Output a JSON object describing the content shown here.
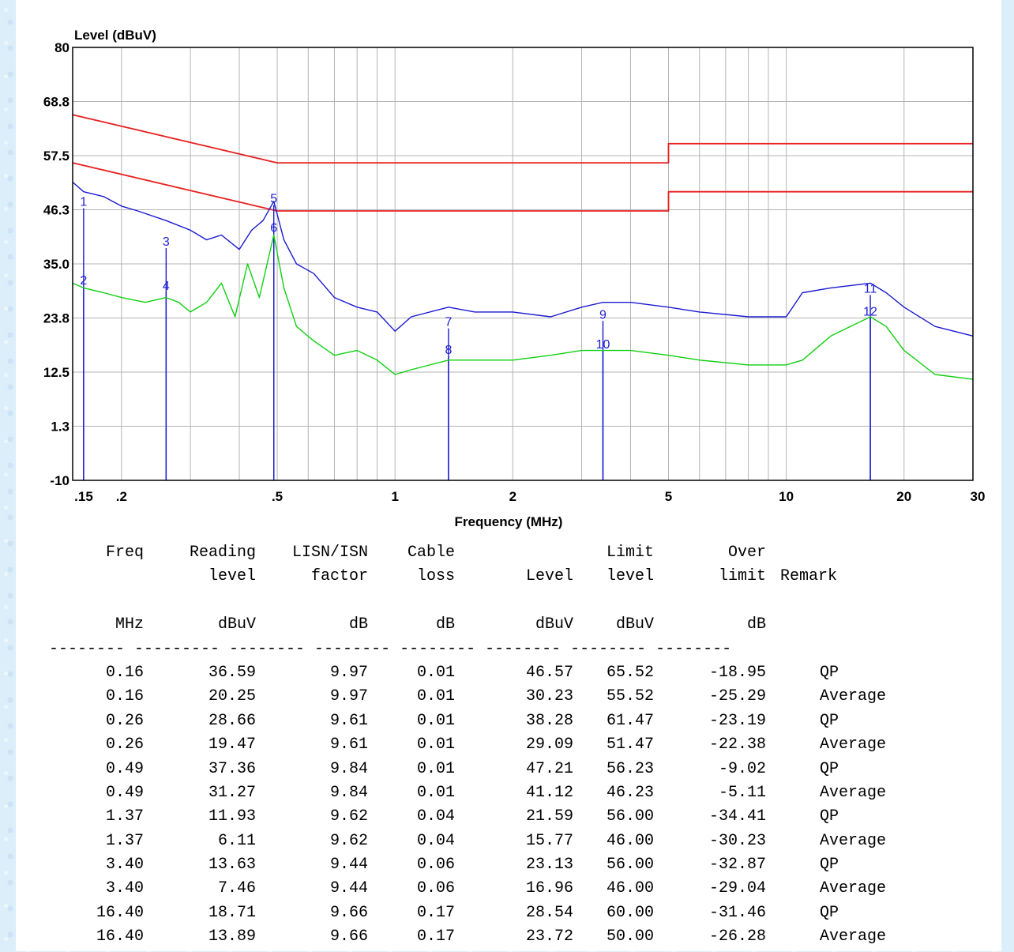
{
  "chart_data": {
    "type": "line",
    "xscale": "log",
    "ylabel": "Level (dBuV)",
    "xlabel": "Frequency (MHz)",
    "ylim": [
      -10,
      80
    ],
    "xlim": [
      0.15,
      30
    ],
    "y_ticks": [
      "80",
      "68.8",
      "57.5",
      "46.3",
      "35.0",
      "23.8",
      "12.5",
      "1.3",
      "-10"
    ],
    "y_tick_values": [
      80,
      68.75,
      57.5,
      46.25,
      35.0,
      23.75,
      12.5,
      1.25,
      -10
    ],
    "x_ticks": [
      {
        "label": ".15",
        "value": 0.15
      },
      {
        "label": ".2",
        "value": 0.2
      },
      {
        "label": ".5",
        "value": 0.5
      },
      {
        "label": "1",
        "value": 1
      },
      {
        "label": "2",
        "value": 2
      },
      {
        "label": "5",
        "value": 5
      },
      {
        "label": "10",
        "value": 10
      },
      {
        "label": "20",
        "value": 20
      },
      {
        "label": "30",
        "value": 30
      }
    ],
    "grid": true,
    "series": [
      {
        "color": "#e82020",
        "x": [
          0.15,
          0.5,
          0.5,
          5,
          5,
          30
        ],
        "y": [
          66,
          56,
          56,
          56,
          60,
          60
        ]
      },
      {
        "color": "#e82020",
        "x": [
          0.15,
          0.5,
          0.5,
          5,
          5,
          30
        ],
        "y": [
          56,
          46,
          46,
          46,
          50,
          50
        ]
      },
      {
        "color": "#1a1ad0",
        "x": [
          0.15,
          0.16,
          0.18,
          0.2,
          0.22,
          0.26,
          0.3,
          0.33,
          0.36,
          0.4,
          0.43,
          0.46,
          0.49,
          0.52,
          0.56,
          0.62,
          0.7,
          0.8,
          0.9,
          1.0,
          1.1,
          1.37,
          1.6,
          2.0,
          2.5,
          3.0,
          3.4,
          4.0,
          5.0,
          6.0,
          8.0,
          10.0,
          11.0,
          13.0,
          16.4,
          18.0,
          20.0,
          24.0,
          30.0
        ],
        "y": [
          52,
          50,
          49,
          47,
          46,
          44,
          42,
          40,
          41,
          38,
          42,
          44,
          48,
          40,
          35,
          33,
          28,
          26,
          25,
          21,
          24,
          26,
          25,
          25,
          24,
          26,
          27,
          27,
          26,
          25,
          24,
          24,
          29,
          30,
          31,
          29,
          26,
          22,
          20
        ]
      },
      {
        "color": "#10d010",
        "x": [
          0.15,
          0.16,
          0.18,
          0.2,
          0.23,
          0.26,
          0.28,
          0.3,
          0.33,
          0.36,
          0.39,
          0.42,
          0.45,
          0.49,
          0.52,
          0.56,
          0.62,
          0.7,
          0.8,
          0.9,
          1.0,
          1.1,
          1.37,
          1.6,
          2.0,
          2.5,
          3.0,
          3.4,
          4.0,
          5.0,
          6.0,
          8.0,
          10.0,
          11.0,
          13.0,
          16.4,
          18.0,
          20.0,
          24.0,
          30.0
        ],
        "y": [
          31,
          30,
          29,
          28,
          27,
          28,
          27,
          25,
          27,
          31,
          24,
          35,
          28,
          41,
          30,
          22,
          19,
          16,
          17,
          15,
          12,
          13,
          15,
          15,
          15,
          16,
          17,
          17,
          17,
          16,
          15,
          14,
          14,
          15,
          20,
          24,
          22,
          17,
          12,
          11
        ]
      }
    ],
    "markers": [
      {
        "label": "1",
        "x": 0.16,
        "y": 46.57
      },
      {
        "label": "2",
        "x": 0.16,
        "y": 30.23
      },
      {
        "label": "3",
        "x": 0.26,
        "y": 38.28
      },
      {
        "label": "4",
        "x": 0.26,
        "y": 29.09
      },
      {
        "label": "5",
        "x": 0.49,
        "y": 47.21
      },
      {
        "label": "6",
        "x": 0.49,
        "y": 41.12
      },
      {
        "label": "7",
        "x": 1.37,
        "y": 21.59
      },
      {
        "label": "8",
        "x": 1.37,
        "y": 15.77
      },
      {
        "label": "9",
        "x": 3.4,
        "y": 23.13
      },
      {
        "label": "10",
        "x": 3.4,
        "y": 16.96
      },
      {
        "label": "11",
        "x": 16.4,
        "y": 28.54
      },
      {
        "label": "12",
        "x": 16.4,
        "y": 23.72
      }
    ]
  },
  "table": {
    "header1": [
      "Freq",
      "Reading",
      "LISN/ISN",
      "Cable",
      "",
      "Limit",
      "Over",
      ""
    ],
    "header2": [
      "",
      "level",
      "factor",
      "loss",
      "Level",
      "level",
      "limit",
      "Remark"
    ],
    "units": [
      "MHz",
      "dBuV",
      "dB",
      "dB",
      "dBuV",
      "dBuV",
      "dB",
      ""
    ],
    "separator": "-------- --------- -------- -------- -------- -------- -------- --------",
    "rows": [
      [
        "0.16",
        "36.59",
        "9.97",
        "0.01",
        "46.57",
        "65.52",
        "-18.95",
        "QP"
      ],
      [
        "0.16",
        "20.25",
        "9.97",
        "0.01",
        "30.23",
        "55.52",
        "-25.29",
        "Average"
      ],
      [
        "0.26",
        "28.66",
        "9.61",
        "0.01",
        "38.28",
        "61.47",
        "-23.19",
        "QP"
      ],
      [
        "0.26",
        "19.47",
        "9.61",
        "0.01",
        "29.09",
        "51.47",
        "-22.38",
        "Average"
      ],
      [
        "0.49",
        "37.36",
        "9.84",
        "0.01",
        "47.21",
        "56.23",
        "-9.02",
        "QP"
      ],
      [
        "0.49",
        "31.27",
        "9.84",
        "0.01",
        "41.12",
        "46.23",
        "-5.11",
        "Average"
      ],
      [
        "1.37",
        "11.93",
        "9.62",
        "0.04",
        "21.59",
        "56.00",
        "-34.41",
        "QP"
      ],
      [
        "1.37",
        "6.11",
        "9.62",
        "0.04",
        "15.77",
        "46.00",
        "-30.23",
        "Average"
      ],
      [
        "3.40",
        "13.63",
        "9.44",
        "0.06",
        "23.13",
        "56.00",
        "-32.87",
        "QP"
      ],
      [
        "3.40",
        "7.46",
        "9.44",
        "0.06",
        "16.96",
        "46.00",
        "-29.04",
        "Average"
      ],
      [
        "16.40",
        "18.71",
        "9.66",
        "0.17",
        "28.54",
        "60.00",
        "-31.46",
        "QP"
      ],
      [
        "16.40",
        "13.89",
        "9.66",
        "0.17",
        "23.72",
        "50.00",
        "-26.28",
        "Average"
      ]
    ]
  }
}
